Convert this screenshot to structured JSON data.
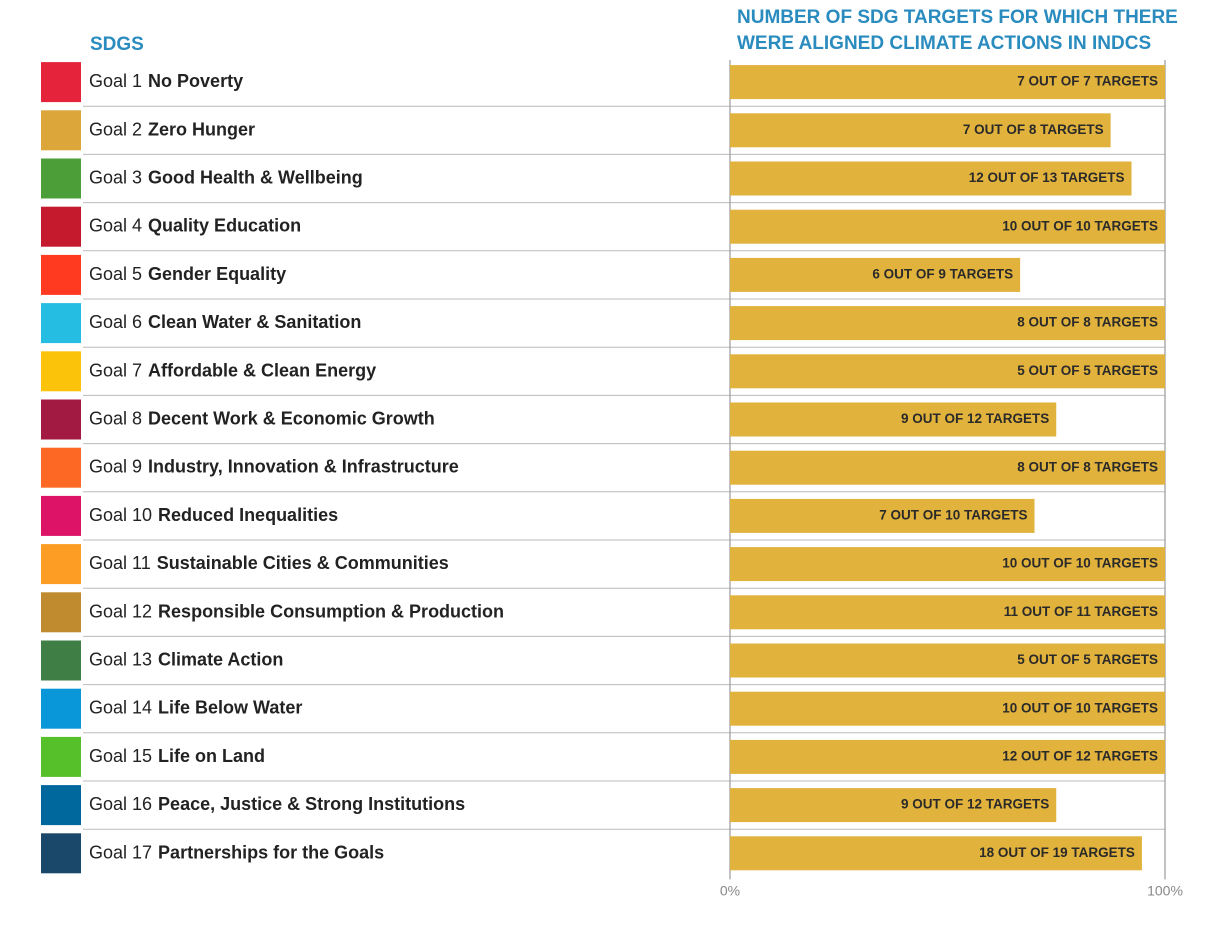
{
  "chart_data": {
    "type": "bar",
    "title": "SDGS",
    "subtitle": [
      "NUMBER OF SDG TARGETS FOR WHICH THERE",
      "WERE ALIGNED CLIMATE ACTIONS IN INDCS"
    ],
    "goal_labels": [
      "Goal 1",
      "Goal 2",
      "Goal 3",
      "Goal 4",
      "Goal 5",
      "Goal 6",
      "Goal 7",
      "Goal 8",
      "Goal 9",
      "Goal 10",
      "Goal 11",
      "Goal 12",
      "Goal 13",
      "Goal 14",
      "Goal 15",
      "Goal 16",
      "Goal 17"
    ],
    "categories": [
      "No Poverty",
      "Zero Hunger",
      "Good Health & Wellbeing",
      "Quality Education",
      "Gender Equality",
      "Clean Water & Sanitation",
      "Affordable & Clean Energy",
      "Decent Work & Economic Growth",
      "Industry, Innovation & Infrastructure",
      "Reduced Inequalities",
      "Sustainable Cities & Communities",
      "Responsible Consumption & Production",
      "Climate Action",
      "Life Below Water",
      "Life on Land",
      "Peace, Justice & Strong Institutions",
      "Partnerships for the Goals"
    ],
    "icon_colors": [
      "#e5243b",
      "#dda63a",
      "#4c9f38",
      "#c5192d",
      "#ff3a21",
      "#26bde2",
      "#fcc30b",
      "#a21942",
      "#fd6925",
      "#dd1367",
      "#fd9d24",
      "#bf8b2e",
      "#3f7e44",
      "#0a97d9",
      "#56c02b",
      "#00689d",
      "#19486a"
    ],
    "values": [
      100,
      87.5,
      92.3,
      100,
      66.7,
      100,
      100,
      75,
      100,
      70,
      100,
      100,
      100,
      100,
      100,
      75,
      94.7
    ],
    "value_labels": [
      "7 OUT OF 7 TARGETS",
      "7 OUT OF 8 TARGETS",
      "12 OUT OF 13 TARGETS",
      "10 OUT OF 10 TARGETS",
      "6 OUT OF 9 TARGETS",
      "8 OUT OF 8 TARGETS",
      "5 OUT OF 5 TARGETS",
      "9 OUT OF 12 TARGETS",
      "8 OUT OF 8 TARGETS",
      "7 OUT OF 10 TARGETS",
      "10 OUT OF 10 TARGETS",
      "11 OUT OF 11 TARGETS",
      "5 OUT OF 5 TARGETS",
      "10 OUT OF 10 TARGETS",
      "12 OUT OF 12 TARGETS",
      "9 OUT OF 12 TARGETS",
      "18 OUT OF 19 TARGETS"
    ],
    "color": "#e2b33c",
    "xlim": [
      0,
      100
    ],
    "xticks": [
      {
        "value": 0,
        "label": "0%"
      },
      {
        "value": 100,
        "label": "100%"
      }
    ]
  }
}
